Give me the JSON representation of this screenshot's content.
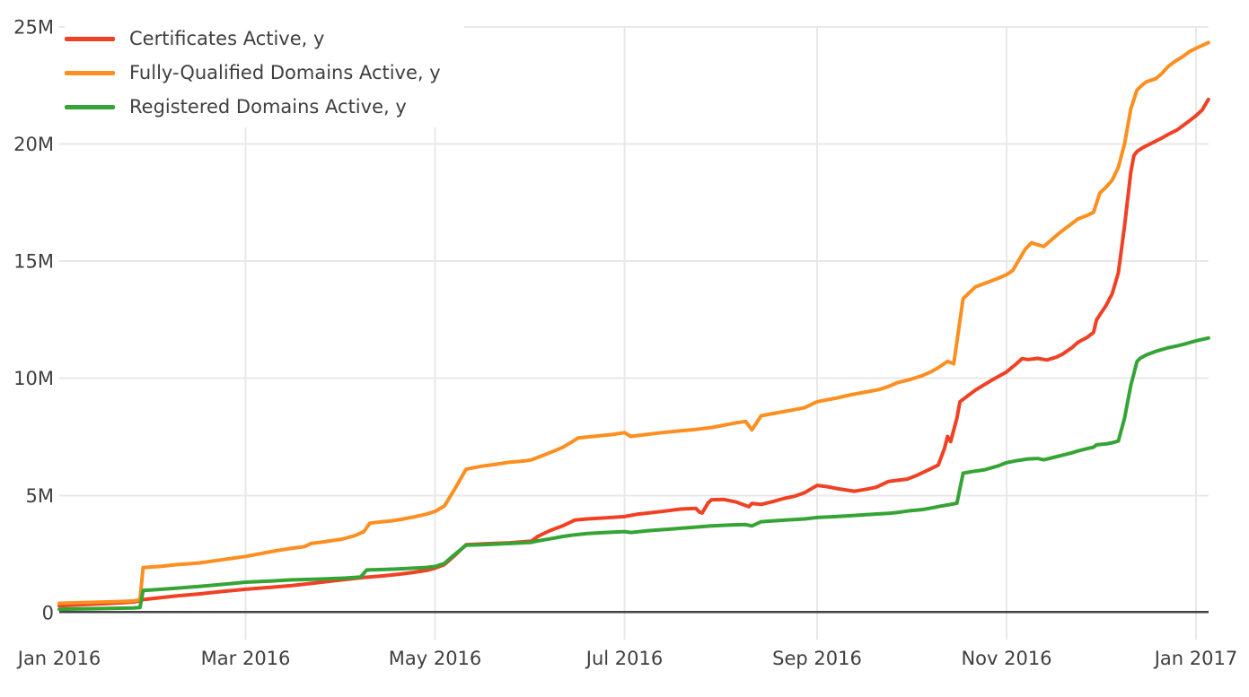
{
  "chart_data": {
    "type": "line",
    "title": "",
    "xlabel": "",
    "ylabel": "",
    "x_unit": "days since Jan 1 2016",
    "y_unit": "millions",
    "grid": true,
    "legend_position": "top-left",
    "x_axis": {
      "ticks": [
        {
          "label": "Jan 2016",
          "day": 0
        },
        {
          "label": "Mar 2016",
          "day": 60
        },
        {
          "label": "May 2016",
          "day": 121
        },
        {
          "label": "Jul 2016",
          "day": 182
        },
        {
          "label": "Sep 2016",
          "day": 244
        },
        {
          "label": "Nov 2016",
          "day": 305
        },
        {
          "label": "Jan 2017",
          "day": 366
        }
      ],
      "range_days": [
        0,
        370
      ]
    },
    "y_axis": {
      "ticks": [
        {
          "label": "0",
          "value": 0
        },
        {
          "label": "5M",
          "value": 5
        },
        {
          "label": "10M",
          "value": 10
        },
        {
          "label": "15M",
          "value": 15
        },
        {
          "label": "20M",
          "value": 20
        },
        {
          "label": "25M",
          "value": 25
        }
      ],
      "range": [
        0,
        25
      ]
    },
    "series": [
      {
        "name": "Certificates Active, y",
        "color": "#f04124",
        "points": [
          [
            0,
            0.3
          ],
          [
            10,
            0.36
          ],
          [
            20,
            0.42
          ],
          [
            24,
            0.46
          ],
          [
            26,
            0.5
          ],
          [
            27,
            0.56
          ],
          [
            38,
            0.72
          ],
          [
            45,
            0.8
          ],
          [
            52,
            0.9
          ],
          [
            60,
            1.0
          ],
          [
            68,
            1.08
          ],
          [
            75,
            1.16
          ],
          [
            83,
            1.28
          ],
          [
            91,
            1.4
          ],
          [
            98,
            1.5
          ],
          [
            105,
            1.58
          ],
          [
            110,
            1.65
          ],
          [
            114,
            1.72
          ],
          [
            118,
            1.8
          ],
          [
            121,
            1.9
          ],
          [
            124,
            2.05
          ],
          [
            127,
            2.4
          ],
          [
            131,
            2.9
          ],
          [
            136,
            2.93
          ],
          [
            145,
            2.98
          ],
          [
            152,
            3.05
          ],
          [
            154,
            3.25
          ],
          [
            158,
            3.5
          ],
          [
            162,
            3.7
          ],
          [
            166,
            3.95
          ],
          [
            170,
            4.0
          ],
          [
            176,
            4.05
          ],
          [
            182,
            4.1
          ],
          [
            186,
            4.2
          ],
          [
            191,
            4.27
          ],
          [
            196,
            4.35
          ],
          [
            200,
            4.42
          ],
          [
            205,
            4.45
          ],
          [
            206,
            4.3
          ],
          [
            207,
            4.25
          ],
          [
            209,
            4.7
          ],
          [
            210,
            4.82
          ],
          [
            214,
            4.83
          ],
          [
            218,
            4.72
          ],
          [
            220,
            4.62
          ],
          [
            222,
            4.52
          ],
          [
            223,
            4.66
          ],
          [
            226,
            4.62
          ],
          [
            230,
            4.75
          ],
          [
            233,
            4.86
          ],
          [
            237,
            4.98
          ],
          [
            240,
            5.12
          ],
          [
            244,
            5.43
          ],
          [
            247,
            5.38
          ],
          [
            251,
            5.28
          ],
          [
            256,
            5.18
          ],
          [
            260,
            5.27
          ],
          [
            263,
            5.35
          ],
          [
            267,
            5.6
          ],
          [
            270,
            5.65
          ],
          [
            273,
            5.7
          ],
          [
            276,
            5.85
          ],
          [
            280,
            6.1
          ],
          [
            283,
            6.3
          ],
          [
            285,
            7.0
          ],
          [
            286,
            7.52
          ],
          [
            287,
            7.3
          ],
          [
            289,
            8.3
          ],
          [
            290,
            9.0
          ],
          [
            293,
            9.3
          ],
          [
            295,
            9.5
          ],
          [
            300,
            9.9
          ],
          [
            305,
            10.27
          ],
          [
            308,
            10.6
          ],
          [
            310,
            10.84
          ],
          [
            312,
            10.8
          ],
          [
            315,
            10.85
          ],
          [
            318,
            10.78
          ],
          [
            321,
            10.9
          ],
          [
            323,
            11.03
          ],
          [
            326,
            11.3
          ],
          [
            328,
            11.54
          ],
          [
            331,
            11.75
          ],
          [
            333,
            11.95
          ],
          [
            334,
            12.5
          ],
          [
            337,
            13.1
          ],
          [
            339,
            13.6
          ],
          [
            341,
            14.5
          ],
          [
            343,
            16.5
          ],
          [
            345,
            18.8
          ],
          [
            346,
            19.5
          ],
          [
            347,
            19.68
          ],
          [
            349,
            19.85
          ],
          [
            352,
            20.05
          ],
          [
            355,
            20.25
          ],
          [
            357,
            20.4
          ],
          [
            360,
            20.6
          ],
          [
            362,
            20.8
          ],
          [
            364,
            21.0
          ],
          [
            366,
            21.2
          ],
          [
            368,
            21.45
          ],
          [
            370,
            21.9
          ]
        ]
      },
      {
        "name": "Fully-Qualified Domains Active, y",
        "color": "#fd8f20",
        "points": [
          [
            0,
            0.4
          ],
          [
            10,
            0.44
          ],
          [
            20,
            0.48
          ],
          [
            24,
            0.5
          ],
          [
            26,
            0.55
          ],
          [
            27,
            1.92
          ],
          [
            33,
            1.98
          ],
          [
            38,
            2.05
          ],
          [
            45,
            2.12
          ],
          [
            52,
            2.25
          ],
          [
            60,
            2.4
          ],
          [
            66,
            2.55
          ],
          [
            70,
            2.65
          ],
          [
            75,
            2.75
          ],
          [
            79,
            2.82
          ],
          [
            81,
            2.95
          ],
          [
            85,
            3.02
          ],
          [
            91,
            3.14
          ],
          [
            95,
            3.28
          ],
          [
            98,
            3.45
          ],
          [
            100,
            3.82
          ],
          [
            104,
            3.88
          ],
          [
            107,
            3.92
          ],
          [
            110,
            3.98
          ],
          [
            114,
            4.08
          ],
          [
            118,
            4.2
          ],
          [
            121,
            4.32
          ],
          [
            124,
            4.55
          ],
          [
            127,
            5.2
          ],
          [
            131,
            6.12
          ],
          [
            136,
            6.25
          ],
          [
            140,
            6.32
          ],
          [
            145,
            6.42
          ],
          [
            150,
            6.48
          ],
          [
            152,
            6.52
          ],
          [
            156,
            6.72
          ],
          [
            159,
            6.88
          ],
          [
            162,
            7.05
          ],
          [
            165,
            7.28
          ],
          [
            167,
            7.45
          ],
          [
            172,
            7.52
          ],
          [
            178,
            7.6
          ],
          [
            182,
            7.68
          ],
          [
            184,
            7.52
          ],
          [
            189,
            7.6
          ],
          [
            194,
            7.68
          ],
          [
            200,
            7.76
          ],
          [
            205,
            7.82
          ],
          [
            210,
            7.9
          ],
          [
            214,
            8.0
          ],
          [
            218,
            8.1
          ],
          [
            221,
            8.16
          ],
          [
            223,
            7.8
          ],
          [
            226,
            8.4
          ],
          [
            230,
            8.5
          ],
          [
            235,
            8.62
          ],
          [
            240,
            8.75
          ],
          [
            244,
            9.0
          ],
          [
            250,
            9.15
          ],
          [
            255,
            9.3
          ],
          [
            260,
            9.42
          ],
          [
            264,
            9.52
          ],
          [
            267,
            9.65
          ],
          [
            270,
            9.82
          ],
          [
            274,
            9.95
          ],
          [
            278,
            10.12
          ],
          [
            281,
            10.3
          ],
          [
            283,
            10.45
          ],
          [
            286,
            10.72
          ],
          [
            288,
            10.62
          ],
          [
            291,
            13.4
          ],
          [
            293,
            13.65
          ],
          [
            295,
            13.9
          ],
          [
            298,
            14.05
          ],
          [
            302,
            14.25
          ],
          [
            305,
            14.42
          ],
          [
            307,
            14.6
          ],
          [
            309,
            15.05
          ],
          [
            311,
            15.5
          ],
          [
            313,
            15.78
          ],
          [
            315,
            15.7
          ],
          [
            317,
            15.62
          ],
          [
            319,
            15.85
          ],
          [
            322,
            16.2
          ],
          [
            325,
            16.5
          ],
          [
            328,
            16.8
          ],
          [
            331,
            16.95
          ],
          [
            333,
            17.08
          ],
          [
            335,
            17.9
          ],
          [
            337,
            18.15
          ],
          [
            339,
            18.45
          ],
          [
            341,
            19.0
          ],
          [
            343,
            20.0
          ],
          [
            345,
            21.5
          ],
          [
            347,
            22.3
          ],
          [
            349,
            22.55
          ],
          [
            350,
            22.65
          ],
          [
            353,
            22.78
          ],
          [
            355,
            23.0
          ],
          [
            357,
            23.3
          ],
          [
            359,
            23.5
          ],
          [
            362,
            23.75
          ],
          [
            364,
            23.95
          ],
          [
            366,
            24.08
          ],
          [
            368,
            24.2
          ],
          [
            370,
            24.32
          ]
        ]
      },
      {
        "name": "Registered Domains Active, y",
        "color": "#35a435",
        "points": [
          [
            0,
            0.15
          ],
          [
            10,
            0.17
          ],
          [
            20,
            0.19
          ],
          [
            24,
            0.2
          ],
          [
            26,
            0.22
          ],
          [
            27,
            0.95
          ],
          [
            33,
            1.0
          ],
          [
            38,
            1.05
          ],
          [
            45,
            1.12
          ],
          [
            52,
            1.2
          ],
          [
            60,
            1.3
          ],
          [
            68,
            1.35
          ],
          [
            75,
            1.4
          ],
          [
            83,
            1.43
          ],
          [
            91,
            1.47
          ],
          [
            95,
            1.5
          ],
          [
            97,
            1.52
          ],
          [
            99,
            1.82
          ],
          [
            104,
            1.84
          ],
          [
            110,
            1.87
          ],
          [
            114,
            1.9
          ],
          [
            118,
            1.93
          ],
          [
            121,
            1.97
          ],
          [
            124,
            2.1
          ],
          [
            127,
            2.45
          ],
          [
            131,
            2.88
          ],
          [
            136,
            2.9
          ],
          [
            145,
            2.95
          ],
          [
            152,
            3.0
          ],
          [
            154,
            3.06
          ],
          [
            158,
            3.15
          ],
          [
            162,
            3.25
          ],
          [
            166,
            3.32
          ],
          [
            170,
            3.38
          ],
          [
            176,
            3.42
          ],
          [
            182,
            3.46
          ],
          [
            184,
            3.42
          ],
          [
            190,
            3.5
          ],
          [
            196,
            3.56
          ],
          [
            203,
            3.63
          ],
          [
            210,
            3.7
          ],
          [
            216,
            3.74
          ],
          [
            221,
            3.76
          ],
          [
            223,
            3.7
          ],
          [
            226,
            3.88
          ],
          [
            230,
            3.92
          ],
          [
            235,
            3.96
          ],
          [
            240,
            4.0
          ],
          [
            244,
            4.06
          ],
          [
            250,
            4.1
          ],
          [
            256,
            4.15
          ],
          [
            262,
            4.2
          ],
          [
            267,
            4.24
          ],
          [
            270,
            4.28
          ],
          [
            274,
            4.35
          ],
          [
            278,
            4.4
          ],
          [
            281,
            4.47
          ],
          [
            284,
            4.55
          ],
          [
            287,
            4.62
          ],
          [
            289,
            4.67
          ],
          [
            291,
            5.95
          ],
          [
            294,
            6.02
          ],
          [
            298,
            6.1
          ],
          [
            302,
            6.25
          ],
          [
            305,
            6.4
          ],
          [
            308,
            6.48
          ],
          [
            310,
            6.52
          ],
          [
            312,
            6.56
          ],
          [
            315,
            6.58
          ],
          [
            317,
            6.52
          ],
          [
            320,
            6.62
          ],
          [
            323,
            6.72
          ],
          [
            326,
            6.82
          ],
          [
            328,
            6.9
          ],
          [
            331,
            7.0
          ],
          [
            333,
            7.06
          ],
          [
            334,
            7.16
          ],
          [
            337,
            7.2
          ],
          [
            339,
            7.25
          ],
          [
            341,
            7.32
          ],
          [
            343,
            8.3
          ],
          [
            345,
            9.7
          ],
          [
            346,
            10.2
          ],
          [
            347,
            10.72
          ],
          [
            348,
            10.85
          ],
          [
            350,
            11.0
          ],
          [
            353,
            11.15
          ],
          [
            357,
            11.3
          ],
          [
            360,
            11.38
          ],
          [
            362,
            11.45
          ],
          [
            366,
            11.6
          ],
          [
            370,
            11.72
          ]
        ]
      }
    ],
    "colors": {
      "grid": "#e8e8e8",
      "axis_line": "#444444",
      "tick_text": "#3f3f3f",
      "background": "#ffffff"
    }
  }
}
